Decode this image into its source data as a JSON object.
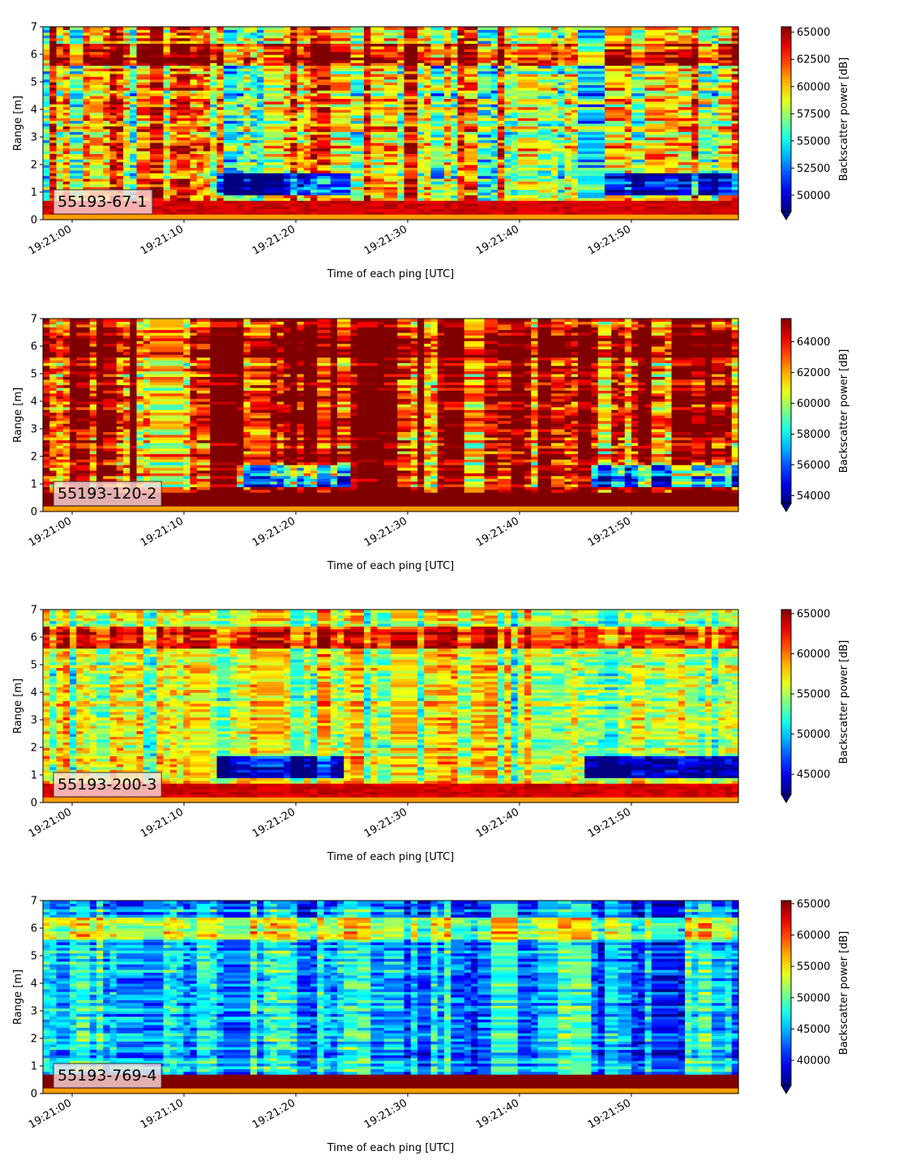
{
  "chart_data": [
    {
      "type": "heatmap",
      "label": "55193-67-1",
      "xlabel": "Time of each ping [UTC]",
      "ylabel": "Range [m]",
      "ylim": [
        0,
        7
      ],
      "yticks": [
        "0",
        "1",
        "2",
        "3",
        "4",
        "5",
        "6",
        "7"
      ],
      "xticks": [
        "19:21:00",
        "19:21:10",
        "19:21:20",
        "19:21:30",
        "19:21:40",
        "19:21:50"
      ],
      "colorbar": {
        "label": "Backscatter power [dB]",
        "ticks": [
          "50000",
          "52500",
          "55000",
          "57500",
          "60000",
          "62500",
          "65000"
        ],
        "range": [
          48500,
          65500
        ]
      },
      "colormap": "jet",
      "pattern": {
        "seed": 11,
        "mean": 0.62,
        "spread": 0.35,
        "blue_band": true,
        "bottom_band": "red"
      }
    },
    {
      "type": "heatmap",
      "label": "55193-120-2",
      "xlabel": "Time of each ping [UTC]",
      "ylabel": "Range [m]",
      "ylim": [
        0,
        7
      ],
      "yticks": [
        "0",
        "1",
        "2",
        "3",
        "4",
        "5",
        "6",
        "7"
      ],
      "xticks": [
        "19:21:00",
        "19:21:10",
        "19:21:20",
        "19:21:30",
        "19:21:40",
        "19:21:50"
      ],
      "colorbar": {
        "label": "Backscatter power [dB]",
        "ticks": [
          "54000",
          "56000",
          "58000",
          "60000",
          "62000",
          "64000"
        ],
        "range": [
          53500,
          65500
        ]
      },
      "colormap": "jet",
      "pattern": {
        "seed": 23,
        "mean": 0.88,
        "spread": 0.35,
        "blue_band": true,
        "bottom_band": "darkred"
      }
    },
    {
      "type": "heatmap",
      "label": "55193-200-3",
      "xlabel": "Time of each ping [UTC]",
      "ylabel": "Range [m]",
      "ylim": [
        0,
        7
      ],
      "yticks": [
        "0",
        "1",
        "2",
        "3",
        "4",
        "5",
        "6",
        "7"
      ],
      "xticks": [
        "19:21:00",
        "19:21:10",
        "19:21:20",
        "19:21:30",
        "19:21:40",
        "19:21:50"
      ],
      "colorbar": {
        "label": "Backscatter power [dB]",
        "ticks": [
          "45000",
          "50000",
          "55000",
          "60000",
          "65000"
        ],
        "range": [
          42500,
          65500
        ]
      },
      "colormap": "jet",
      "pattern": {
        "seed": 37,
        "mean": 0.55,
        "spread": 0.22,
        "blue_band": true,
        "bottom_band": "red"
      }
    },
    {
      "type": "heatmap",
      "label": "55193-769-4",
      "xlabel": "Time of each ping [UTC]",
      "ylabel": "Range [m]",
      "ylim": [
        0,
        7
      ],
      "yticks": [
        "0",
        "1",
        "2",
        "3",
        "4",
        "5",
        "6",
        "7"
      ],
      "xticks": [
        "19:21:00",
        "19:21:10",
        "19:21:20",
        "19:21:30",
        "19:21:40",
        "19:21:50"
      ],
      "colorbar": {
        "label": "Backscatter power [dB]",
        "ticks": [
          "40000",
          "45000",
          "50000",
          "55000",
          "60000",
          "65000"
        ],
        "range": [
          36000,
          65500
        ]
      },
      "colormap": "jet",
      "pattern": {
        "seed": 51,
        "mean": 0.3,
        "spread": 0.22,
        "blue_band": false,
        "bottom_band": "darkred"
      }
    }
  ]
}
